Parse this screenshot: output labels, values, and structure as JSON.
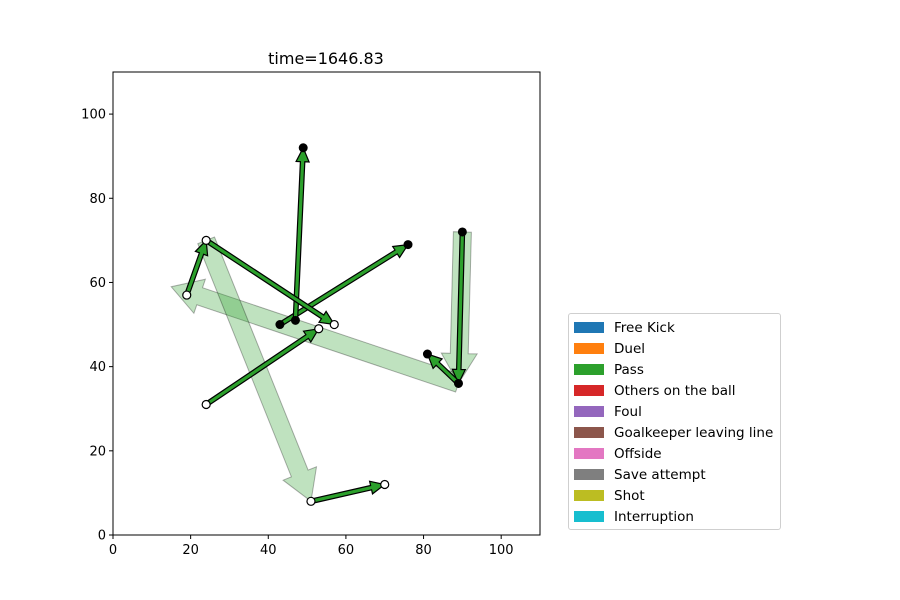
{
  "chart_data": {
    "type": "scatter",
    "title": "time=1646.83",
    "xlabel": "",
    "ylabel": "",
    "xlim": [
      0,
      110
    ],
    "ylim": [
      0,
      110
    ],
    "xticks": [
      "0",
      "20",
      "40",
      "60",
      "80",
      "100"
    ],
    "yticks": [
      "0",
      "20",
      "40",
      "60",
      "80",
      "100"
    ],
    "grid": false,
    "legend_position": "lower-right outside plot",
    "legend": [
      {
        "label": "Free Kick",
        "color": "#1f77b4"
      },
      {
        "label": "Duel",
        "color": "#ff7f0e"
      },
      {
        "label": "Pass",
        "color": "#2ca02c"
      },
      {
        "label": "Others on the ball",
        "color": "#d62728"
      },
      {
        "label": "Foul",
        "color": "#9467bd"
      },
      {
        "label": "Goalkeeper leaving line",
        "color": "#8c564b"
      },
      {
        "label": "Offside",
        "color": "#e377c2"
      },
      {
        "label": "Save attempt",
        "color": "#7f7f7f"
      },
      {
        "label": "Shot",
        "color": "#bcbd22"
      },
      {
        "label": "Interruption",
        "color": "#17becf"
      }
    ],
    "movement_arrows": [
      {
        "from": [
          90,
          72
        ],
        "to": [
          89,
          36
        ]
      },
      {
        "from": [
          89,
          36
        ],
        "to": [
          15,
          59
        ]
      },
      {
        "from": [
          24,
          70
        ],
        "to": [
          51,
          8
        ]
      }
    ],
    "event_arrows": [
      {
        "type": "Pass",
        "from": [
          24,
          31
        ],
        "to": [
          53,
          49
        ]
      },
      {
        "type": "Pass",
        "from": [
          43,
          50
        ],
        "to": [
          76,
          69
        ]
      },
      {
        "type": "Pass",
        "from": [
          47,
          51
        ],
        "to": [
          49,
          92
        ]
      },
      {
        "type": "Pass",
        "from": [
          24,
          70
        ],
        "to": [
          57,
          50
        ]
      },
      {
        "type": "Pass",
        "from": [
          19,
          57
        ],
        "to": [
          24,
          70
        ]
      },
      {
        "type": "Pass",
        "from": [
          51,
          8
        ],
        "to": [
          70,
          12
        ]
      },
      {
        "type": "Pass",
        "from": [
          90,
          72
        ],
        "to": [
          89,
          36
        ]
      },
      {
        "type": "Pass",
        "from": [
          89,
          36
        ],
        "to": [
          81,
          43
        ]
      }
    ],
    "open_points": [
      [
        24,
        31
      ],
      [
        53,
        49
      ],
      [
        57,
        50
      ],
      [
        19,
        57
      ],
      [
        24,
        70
      ],
      [
        51,
        8
      ],
      [
        70,
        12
      ]
    ],
    "filled_points": [
      [
        49,
        92
      ],
      [
        76,
        69
      ],
      [
        47,
        51
      ],
      [
        43,
        50
      ],
      [
        90,
        72
      ],
      [
        81,
        43
      ],
      [
        89,
        36
      ]
    ]
  }
}
